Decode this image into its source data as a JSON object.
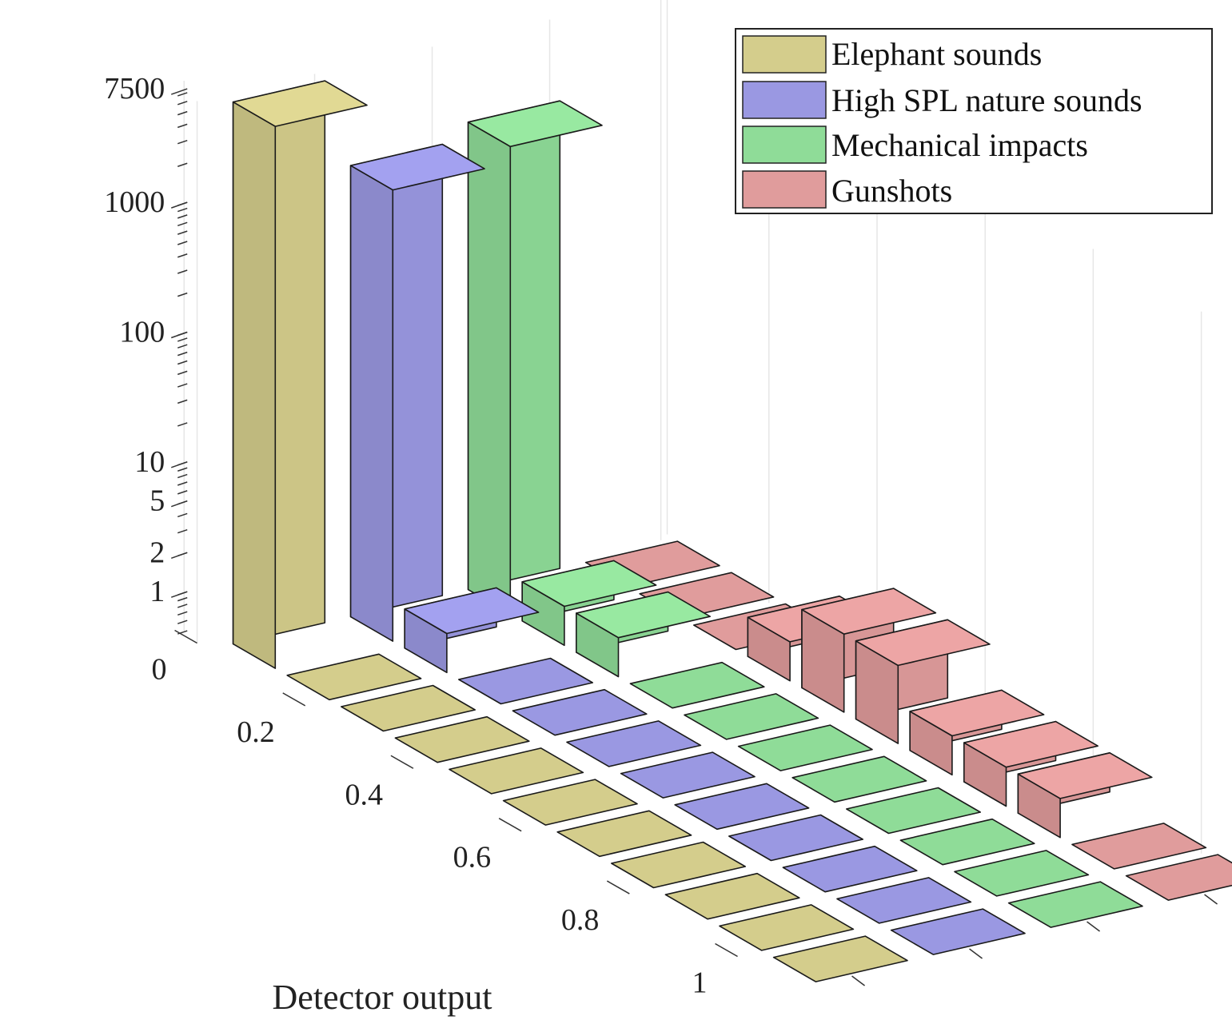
{
  "chart_data": {
    "type": "bar3d",
    "title": "",
    "xlabel": "Detector output",
    "ylabel": "",
    "zscale": "log",
    "zticks": [
      "1",
      "2",
      "5",
      "10",
      "100",
      "1000",
      "7500"
    ],
    "zlim": [
      0.5,
      7500
    ],
    "x_ticks": [
      "0",
      "0.2",
      "0.4",
      "0.6",
      "0.8",
      "1"
    ],
    "bins": [
      0,
      0.1,
      0.2,
      0.3,
      0.4,
      0.5,
      0.6,
      0.7,
      0.8,
      0.9,
      1.0
    ],
    "grid": true,
    "legend": {
      "position": "top-right"
    },
    "series": [
      {
        "name": "Elephant sounds",
        "color": "#d4cd8c",
        "values": [
          7500,
          0,
          0,
          0,
          0,
          0,
          0,
          0,
          0,
          0,
          0
        ]
      },
      {
        "name": "High SPL nature sounds",
        "color": "#9a98e2",
        "values": [
          1500,
          1,
          0,
          0,
          0,
          0,
          0,
          0,
          0,
          0,
          0
        ]
      },
      {
        "name": "Mechanical impacts",
        "color": "#8fdc98",
        "values": [
          2000,
          1,
          1,
          0,
          0,
          0,
          0,
          0,
          0,
          0,
          0
        ]
      },
      {
        "name": "Gunshots",
        "color": "#e09c9c",
        "values": [
          0,
          0,
          0,
          1,
          2,
          2,
          1,
          1,
          1,
          0,
          0
        ]
      }
    ]
  }
}
